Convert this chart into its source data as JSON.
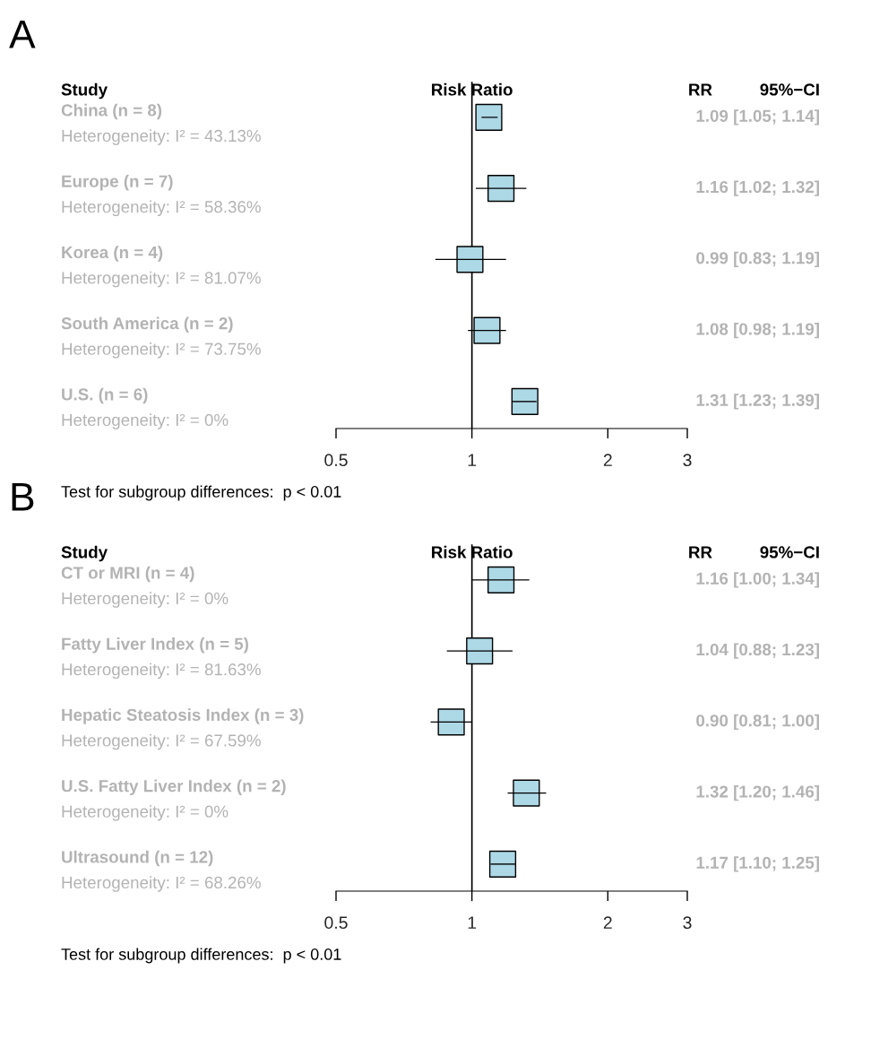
{
  "chart_data": [
    {
      "type": "scatter",
      "orientation": "horizontal",
      "title": "A",
      "log": "x",
      "marker": "square",
      "color": "#add8e6",
      "categories": [
        "China (n = 8)",
        "Europe (n = 7)",
        "Korea (n = 4)",
        "South America (n = 2)",
        "U.S. (n = 6)"
      ],
      "values": [
        1.09,
        1.16,
        0.99,
        1.08,
        1.31
      ],
      "errors": [
        [
          1.05,
          1.14
        ],
        [
          1.02,
          1.32
        ],
        [
          0.83,
          1.19
        ],
        [
          0.98,
          1.19
        ],
        [
          1.23,
          1.39
        ]
      ],
      "value_labels": [
        "1.09 [1.05; 1.14]",
        "1.16 [1.02; 1.32]",
        "0.99 [0.83; 1.19]",
        "1.08 [0.98; 1.19]",
        "1.31 [1.23; 1.39]"
      ],
      "xlim": [
        0.5,
        3
      ],
      "xticks": [
        0.5,
        1,
        2,
        3
      ],
      "ref_lines": [
        {
          "axis": "x",
          "value": 1
        }
      ],
      "annotations": [
        "Study",
        "Risk Ratio",
        "RR",
        "95%−CI",
        "Heterogeneity: I² = 43.13%",
        "Heterogeneity: I² = 58.36%",
        "Heterogeneity: I² = 81.07%",
        "Heterogeneity: I² = 73.75%",
        "Heterogeneity: I² = 0%",
        "Test for subgroup differences:  p < 0.01"
      ]
    },
    {
      "type": "scatter",
      "orientation": "horizontal",
      "title": "B",
      "log": "x",
      "marker": "square",
      "color": "#add8e6",
      "categories": [
        "CT or MRI (n = 4)",
        "Fatty Liver Index (n = 5)",
        "Hepatic Steatosis Index (n = 3)",
        "U.S. Fatty Liver Index (n = 2)",
        "Ultrasound (n = 12)"
      ],
      "values": [
        1.16,
        1.04,
        0.9,
        1.32,
        1.17
      ],
      "errors": [
        [
          1.0,
          1.34
        ],
        [
          0.88,
          1.23
        ],
        [
          0.81,
          1.0
        ],
        [
          1.2,
          1.46
        ],
        [
          1.1,
          1.25
        ]
      ],
      "value_labels": [
        "1.16 [1.00; 1.34]",
        "1.04 [0.88; 1.23]",
        "0.90 [0.81; 1.00]",
        "1.32 [1.20; 1.46]",
        "1.17 [1.10; 1.25]"
      ],
      "xlim": [
        0.5,
        3
      ],
      "xticks": [
        0.5,
        1,
        2,
        3
      ],
      "ref_lines": [
        {
          "axis": "x",
          "value": 1
        }
      ],
      "annotations": [
        "Study",
        "Risk Ratio",
        "RR",
        "95%−CI",
        "Heterogeneity: I² = 0%",
        "Heterogeneity: I² = 81.63%",
        "Heterogeneity: I² = 67.59%",
        "Heterogeneity: I² = 0%",
        "Heterogeneity: I² = 68.26%",
        "Test for subgroup differences:  p < 0.01"
      ]
    }
  ]
}
